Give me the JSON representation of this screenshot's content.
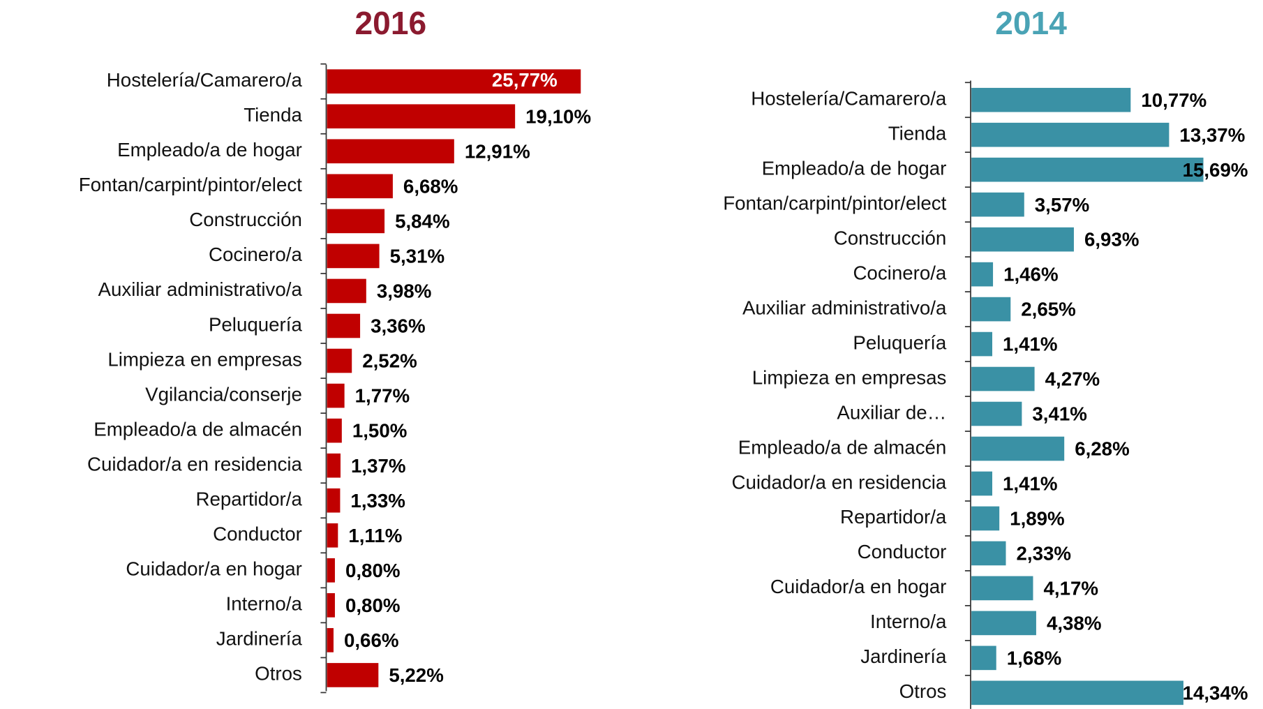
{
  "chart_data": [
    {
      "type": "bar",
      "orientation": "horizontal",
      "title": "2016",
      "title_color": "#8b1a2f",
      "color": "#c00000",
      "categories": [
        "Hostelería/Camarero/a",
        "Tienda",
        "Empleado/a de hogar",
        "Fontan/carpint/pintor/elect",
        "Construcción",
        "Cocinero/a",
        "Auxiliar administrativo/a",
        "Peluquería",
        "Limpieza en empresas",
        "Vgilancia/conserje",
        "Empleado/a de almacén",
        "Cuidador/a en residencia",
        "Repartidor/a",
        "Conductor",
        "Cuidador/a en hogar",
        "Interno/a",
        "Jardinería",
        "Otros"
      ],
      "values": [
        25.77,
        19.1,
        12.91,
        6.68,
        5.84,
        5.31,
        3.98,
        3.36,
        2.52,
        1.77,
        1.5,
        1.37,
        1.33,
        1.11,
        0.8,
        0.8,
        0.66,
        5.22
      ],
      "value_labels": [
        "25,77%",
        "19,10%",
        "12,91%",
        "6,68%",
        "5,84%",
        "5,31%",
        "3,98%",
        "3,36%",
        "2,52%",
        "1,77%",
        "1,50%",
        "1,37%",
        "1,33%",
        "1,11%",
        "0,80%",
        "0,80%",
        "0,66%",
        "5,22%"
      ]
    },
    {
      "type": "bar",
      "orientation": "horizontal",
      "title": "2014",
      "title_color": "#4aa3b5",
      "color": "#3a91a5",
      "categories": [
        "Hostelería/Camarero/a",
        "Tienda",
        "Empleado/a de hogar",
        "Fontan/carpint/pintor/elect",
        "Construcción",
        "Cocinero/a",
        "Auxiliar administrativo/a",
        "Peluquería",
        "Limpieza en empresas",
        "Auxiliar de…",
        "Empleado/a de almacén",
        "Cuidador/a en residencia",
        "Repartidor/a",
        "Conductor",
        "Cuidador/a en hogar",
        "Interno/a",
        "Jardinería",
        "Otros"
      ],
      "values": [
        10.77,
        13.37,
        15.69,
        3.57,
        6.93,
        1.46,
        2.65,
        1.41,
        4.27,
        3.41,
        6.28,
        1.41,
        1.89,
        2.33,
        4.17,
        4.38,
        1.68,
        14.34
      ],
      "value_labels": [
        "10,77%",
        "13,37%",
        "15,69%",
        "3,57%",
        "6,93%",
        "1,46%",
        "2,65%",
        "1,41%",
        "4,27%",
        "3,41%",
        "6,28%",
        "1,41%",
        "1,89%",
        "2,33%",
        "4,17%",
        "4,38%",
        "1,68%",
        "14,34%"
      ]
    }
  ]
}
